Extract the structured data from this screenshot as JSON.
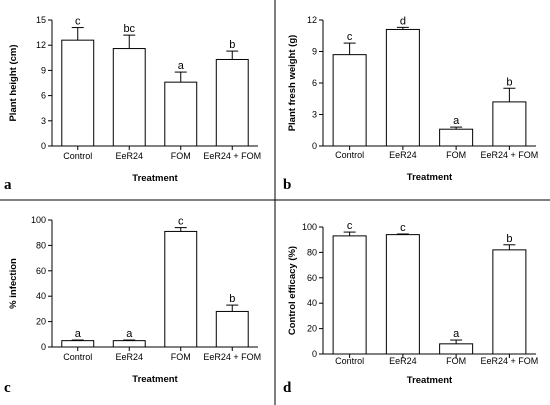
{
  "chart_data": [
    {
      "type": "bar",
      "panel": "a",
      "categories": [
        "Control",
        "EeR24",
        "FOM",
        "EeR24 + FOM"
      ],
      "values": [
        12.6,
        11.6,
        7.6,
        10.3
      ],
      "errors": [
        1.5,
        1.6,
        1.2,
        1.0
      ],
      "letters": [
        "c",
        "bc",
        "a",
        "b"
      ],
      "xlabel": "Treatment",
      "ylabel": "Plant height (cm)",
      "ylim": [
        0,
        15
      ],
      "yticks": [
        0,
        3,
        6,
        9,
        12,
        15
      ]
    },
    {
      "type": "bar",
      "panel": "b",
      "categories": [
        "Control",
        "EeR24",
        "FOM",
        "EeR24 + FOM"
      ],
      "values": [
        8.7,
        11.1,
        1.6,
        4.2
      ],
      "errors": [
        1.1,
        0.2,
        0.2,
        1.3
      ],
      "letters": [
        "c",
        "d",
        "a",
        "b"
      ],
      "xlabel": "Treatment",
      "ylabel": "Plant fresh weight (g)",
      "ylim": [
        0,
        12
      ],
      "yticks": [
        0,
        3,
        6,
        9,
        12
      ]
    },
    {
      "type": "bar",
      "panel": "c",
      "categories": [
        "Control",
        "EeR24",
        "FOM",
        "EeR24 + FOM"
      ],
      "values": [
        5,
        5,
        91,
        28
      ],
      "errors": [
        0.5,
        0.5,
        3,
        5
      ],
      "letters": [
        "a",
        "a",
        "c",
        "b"
      ],
      "xlabel": "Treatment",
      "ylabel": "% infection",
      "ylim": [
        0,
        100
      ],
      "yticks": [
        0,
        20,
        40,
        60,
        80,
        100
      ]
    },
    {
      "type": "bar",
      "panel": "d",
      "categories": [
        "Control",
        "EeR24",
        "FOM",
        "EeR24 + FOM"
      ],
      "values": [
        93,
        94,
        8,
        82
      ],
      "errors": [
        3,
        0.5,
        3,
        4
      ],
      "letters": [
        "c",
        "c",
        "a",
        "b"
      ],
      "xlabel": "Treatment",
      "ylabel": "Control efficacy (%)",
      "ylim": [
        0,
        100
      ],
      "yticks": [
        0,
        20,
        40,
        60,
        80,
        100
      ]
    }
  ]
}
